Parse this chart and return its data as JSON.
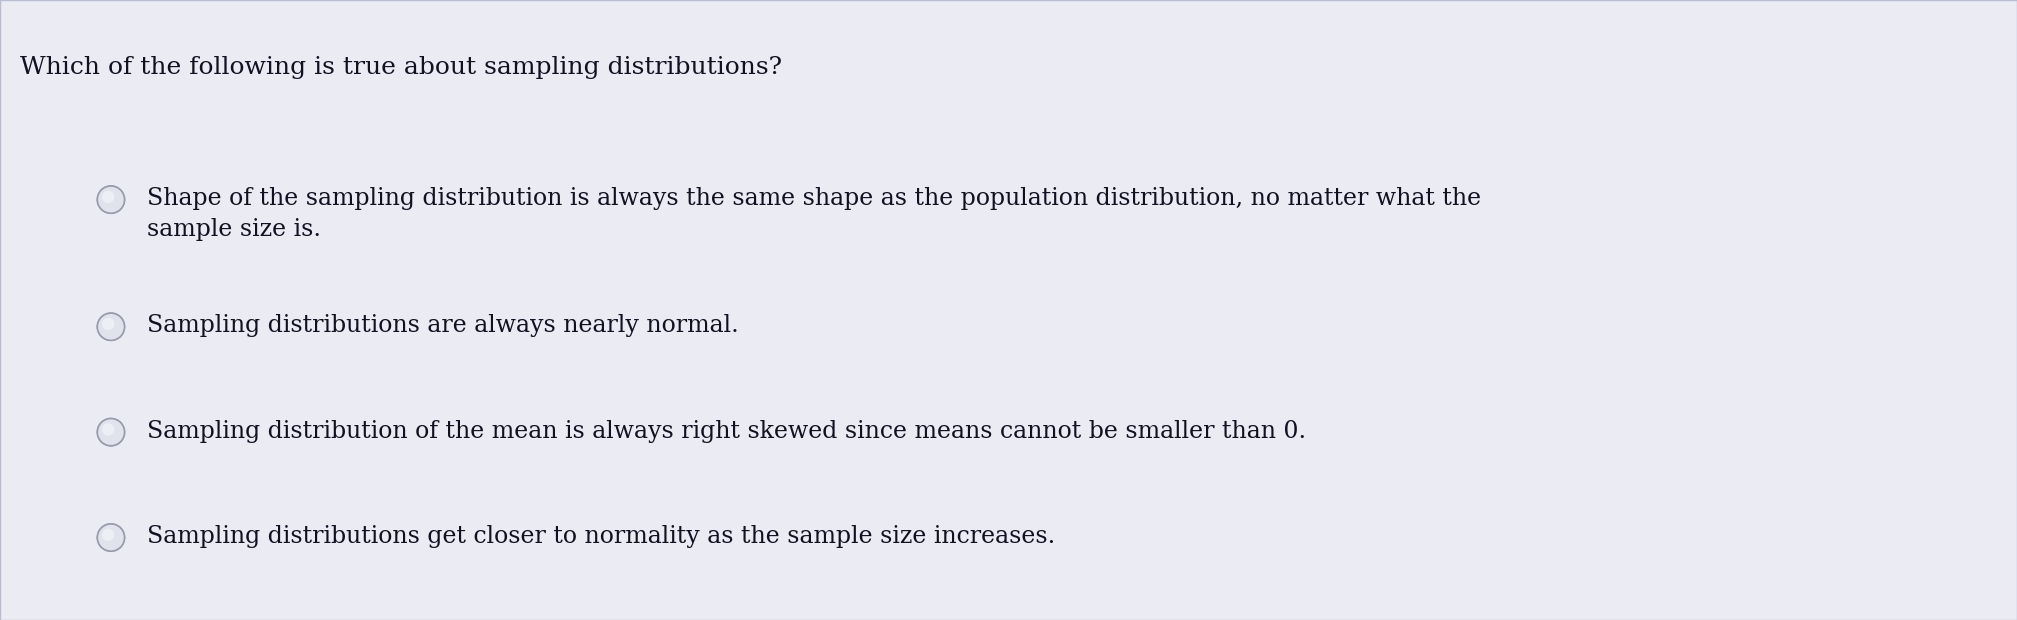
{
  "bg_color": "#dcdee8",
  "card_color": "#eaebf3",
  "border_color": "#b8bcd0",
  "top_bar_color": "#c8cad8",
  "title": "Which of the following is true about sampling distributions?",
  "title_fontsize": 18,
  "title_color": "#111122",
  "options": [
    "Shape of the sampling distribution is always the same shape as the population distribution, no matter what the\nsample size is.",
    "Sampling distributions are always nearly normal.",
    "Sampling distribution of the mean is always right skewed since means cannot be smaller than 0.",
    "Sampling distributions get closer to normality as the sample size increases."
  ],
  "option_fontsize": 17,
  "option_color": "#111122",
  "radio_face_color": "#e0e2ec",
  "radio_edge_color": "#999aaa",
  "radio_highlight": "#f5f5f8",
  "figsize": [
    20.17,
    6.2
  ],
  "dpi": 100
}
